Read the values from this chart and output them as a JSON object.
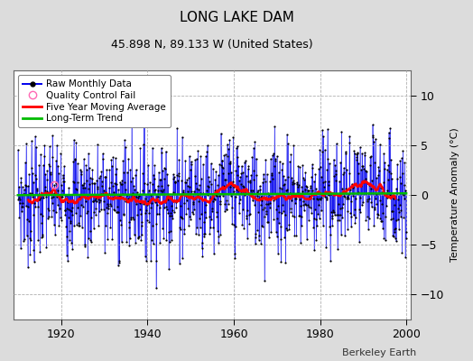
{
  "title": "LONG LAKE DAM",
  "subtitle": "45.898 N, 89.133 W (United States)",
  "ylabel": "Temperature Anomaly (°C)",
  "watermark": "Berkeley Earth",
  "xlim": [
    1909,
    2001
  ],
  "ylim": [
    -12.5,
    12.5
  ],
  "yticks": [
    -10,
    -5,
    0,
    5,
    10
  ],
  "xticks": [
    1920,
    1940,
    1960,
    1980,
    2000
  ],
  "start_year": 1910,
  "end_year": 2000,
  "raw_color": "#0000EE",
  "ma_color": "#FF0000",
  "trend_color": "#00BB00",
  "qc_color": "#FF69B4",
  "dot_color": "#000000",
  "bg_color": "#DCDCDC",
  "plot_bg": "#FFFFFF",
  "grid_color": "#B0B0B0",
  "legend_labels": [
    "Raw Monthly Data",
    "Quality Control Fail",
    "Five Year Moving Average",
    "Long-Term Trend"
  ],
  "title_fontsize": 11,
  "subtitle_fontsize": 9,
  "ylabel_fontsize": 8,
  "tick_fontsize": 9,
  "watermark_fontsize": 8
}
